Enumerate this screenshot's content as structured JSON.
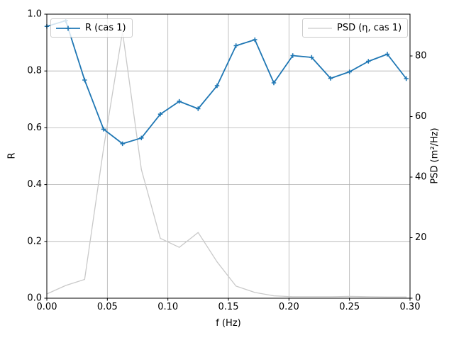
{
  "figure": {
    "background": "#ffffff",
    "text_color": "#000000",
    "grid_color": "#b0b0b0",
    "spine_color": "#000000"
  },
  "chart_data": {
    "type": "line",
    "title": "",
    "xlabel": "f (Hz)",
    "ylabel_left": "R",
    "ylabel_right": "PSD (m²/Hz)",
    "xlim": [
      0,
      0.3
    ],
    "ylim_left": [
      0,
      1.0
    ],
    "ylim_right": [
      0,
      93.8
    ],
    "grid": true,
    "legend_positions": [
      "upper left",
      "upper right"
    ],
    "x_ticks": [
      0.0,
      0.05,
      0.1,
      0.15,
      0.2,
      0.25,
      0.3
    ],
    "x_tick_labels": [
      "0.00",
      "0.05",
      "0.10",
      "0.15",
      "0.20",
      "0.25",
      "0.30"
    ],
    "y_ticks_left": [
      0.0,
      0.2,
      0.4,
      0.6,
      0.8,
      1.0
    ],
    "y_tick_labels_left": [
      "0.0",
      "0.2",
      "0.4",
      "0.6",
      "0.8",
      "1.0"
    ],
    "y_ticks_right": [
      0,
      20,
      40,
      60,
      80
    ],
    "y_tick_labels_right": [
      "0",
      "20",
      "40",
      "60",
      "80"
    ],
    "x": [
      0.0,
      0.015625,
      0.03125,
      0.046875,
      0.0625,
      0.078125,
      0.09375,
      0.109375,
      0.125,
      0.140625,
      0.15625,
      0.171875,
      0.1875,
      0.203125,
      0.21875,
      0.234375,
      0.25,
      0.265625,
      0.28125,
      0.296875
    ],
    "series": [
      {
        "name": "PSD (η, cas 1)",
        "axis": "right",
        "color": "#c9c9c9",
        "marker": "none",
        "linewidth": 1.3,
        "values": [
          1.4,
          4.2,
          6.2,
          49.5,
          88.0,
          42.5,
          19.8,
          16.8,
          21.7,
          12.0,
          4.0,
          1.9,
          0.8,
          0.5,
          0.5,
          0.5,
          0.6,
          0.5,
          0.4,
          0.4
        ]
      },
      {
        "name": "R (cas 1)",
        "axis": "left",
        "color": "#1f77b4",
        "marker": "plus",
        "linewidth": 1.8,
        "values": [
          0.957,
          0.977,
          0.768,
          0.595,
          0.544,
          0.564,
          0.648,
          0.693,
          0.667,
          0.748,
          0.889,
          0.91,
          0.758,
          0.854,
          0.848,
          0.774,
          0.797,
          0.834,
          0.859,
          0.773
        ]
      }
    ]
  }
}
